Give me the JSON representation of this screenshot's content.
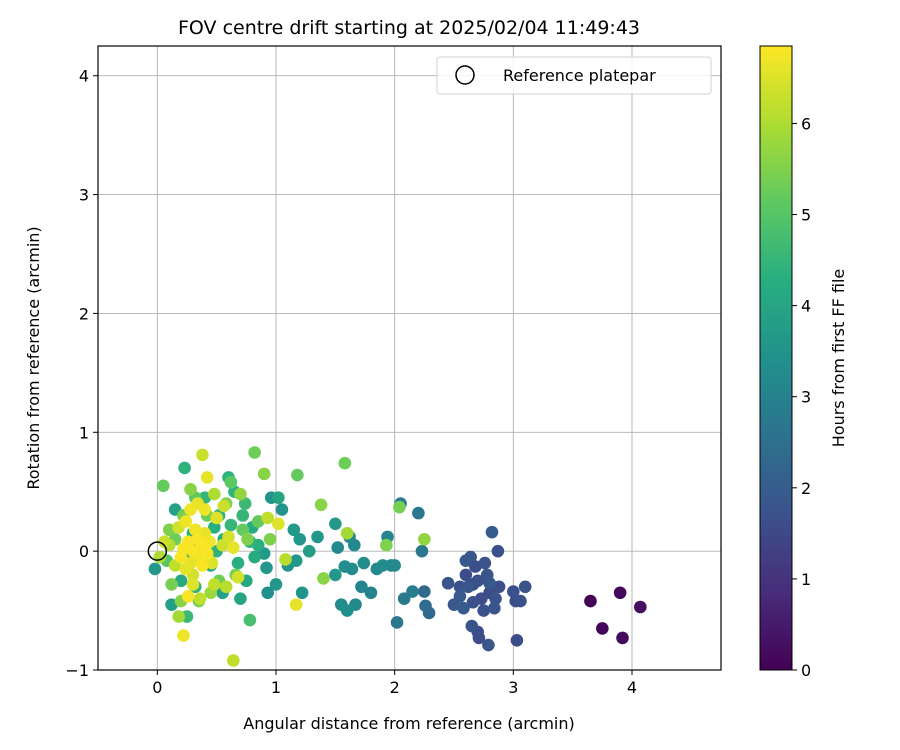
{
  "chart_data": {
    "type": "scatter",
    "title": "FOV centre drift starting at 2025/02/04 11:49:43",
    "xlabel": "Angular distance from reference (arcmin)",
    "ylabel": "Rotation from reference (arcmin)",
    "xlim": [
      -0.5,
      4.75
    ],
    "ylim": [
      -1,
      4.25
    ],
    "xticks": [
      "0",
      "1",
      "2",
      "3",
      "4"
    ],
    "yticks": [
      "−1",
      "0",
      "1",
      "2",
      "3",
      "4"
    ],
    "grid": true,
    "legend": {
      "placement": "upper-right",
      "entries": [
        "Reference platepar"
      ]
    },
    "reference_point": {
      "x": 0,
      "y": 0
    },
    "colorbar": {
      "label": "Hours from first FF file",
      "range": [
        0,
        6.85
      ],
      "ticks": [
        "0",
        "1",
        "2",
        "3",
        "4",
        "5",
        "6"
      ],
      "colormap": "viridis"
    },
    "points": [
      {
        "x": 3.65,
        "y": -0.42,
        "c": 0.05
      },
      {
        "x": 3.75,
        "y": -0.65,
        "c": 0.1
      },
      {
        "x": 3.9,
        "y": -0.35,
        "c": 0.15
      },
      {
        "x": 3.92,
        "y": -0.73,
        "c": 0.2
      },
      {
        "x": 4.07,
        "y": -0.47,
        "c": 0.25
      },
      {
        "x": 2.45,
        "y": -0.27,
        "c": 1.8
      },
      {
        "x": 2.5,
        "y": -0.45,
        "c": 1.85
      },
      {
        "x": 2.55,
        "y": -0.38,
        "c": 1.9
      },
      {
        "x": 2.58,
        "y": -0.48,
        "c": 1.95
      },
      {
        "x": 2.6,
        "y": -0.08,
        "c": 1.9
      },
      {
        "x": 2.62,
        "y": -0.3,
        "c": 1.85
      },
      {
        "x": 2.64,
        "y": -0.05,
        "c": 1.8
      },
      {
        "x": 2.65,
        "y": -0.63,
        "c": 1.75
      },
      {
        "x": 2.66,
        "y": -0.43,
        "c": 1.7
      },
      {
        "x": 2.68,
        "y": -0.13,
        "c": 1.65
      },
      {
        "x": 2.7,
        "y": -0.68,
        "c": 1.6
      },
      {
        "x": 2.71,
        "y": -0.73,
        "c": 1.6
      },
      {
        "x": 2.73,
        "y": -0.4,
        "c": 1.65
      },
      {
        "x": 2.75,
        "y": -0.5,
        "c": 1.7
      },
      {
        "x": 2.76,
        "y": -0.1,
        "c": 1.75
      },
      {
        "x": 2.78,
        "y": -0.2,
        "c": 1.8
      },
      {
        "x": 2.79,
        "y": -0.79,
        "c": 1.85
      },
      {
        "x": 2.8,
        "y": -0.27,
        "c": 1.9
      },
      {
        "x": 2.82,
        "y": 0.16,
        "c": 1.95
      },
      {
        "x": 2.84,
        "y": -0.48,
        "c": 1.8
      },
      {
        "x": 2.85,
        "y": -0.4,
        "c": 1.75
      },
      {
        "x": 2.87,
        "y": 0.0,
        "c": 1.7
      },
      {
        "x": 2.88,
        "y": -0.3,
        "c": 1.65
      },
      {
        "x": 2.6,
        "y": -0.2,
        "c": 1.6
      },
      {
        "x": 2.66,
        "y": -0.28,
        "c": 1.55
      },
      {
        "x": 3.0,
        "y": -0.34,
        "c": 1.7
      },
      {
        "x": 3.02,
        "y": -0.42,
        "c": 1.65
      },
      {
        "x": 3.03,
        "y": -0.75,
        "c": 1.6
      },
      {
        "x": 3.06,
        "y": -0.42,
        "c": 1.7
      },
      {
        "x": 3.1,
        "y": -0.3,
        "c": 1.75
      },
      {
        "x": 2.8,
        "y": -0.35,
        "c": 1.6
      },
      {
        "x": 2.7,
        "y": -0.25,
        "c": 1.7
      },
      {
        "x": 2.55,
        "y": -0.3,
        "c": 1.7
      },
      {
        "x": 2.05,
        "y": 0.4,
        "c": 2.9
      },
      {
        "x": 2.08,
        "y": -0.4,
        "c": 2.8
      },
      {
        "x": 2.15,
        "y": -0.34,
        "c": 2.9
      },
      {
        "x": 2.2,
        "y": 0.32,
        "c": 2.7
      },
      {
        "x": 2.23,
        "y": 0.0,
        "c": 2.7
      },
      {
        "x": 2.25,
        "y": -0.34,
        "c": 2.3
      },
      {
        "x": 2.26,
        "y": -0.46,
        "c": 2.4
      },
      {
        "x": 2.29,
        "y": -0.52,
        "c": 2.3
      },
      {
        "x": 2.02,
        "y": -0.6,
        "c": 2.7
      },
      {
        "x": 1.5,
        "y": 0.23,
        "c": 3.7
      },
      {
        "x": 1.52,
        "y": 0.03,
        "c": 3.2
      },
      {
        "x": 1.55,
        "y": -0.45,
        "c": 3.3
      },
      {
        "x": 1.58,
        "y": -0.13,
        "c": 3.3
      },
      {
        "x": 1.6,
        "y": -0.5,
        "c": 3.4
      },
      {
        "x": 1.62,
        "y": 0.12,
        "c": 3.2
      },
      {
        "x": 1.64,
        "y": -0.15,
        "c": 3.3
      },
      {
        "x": 1.66,
        "y": 0.05,
        "c": 3.2
      },
      {
        "x": 1.67,
        "y": -0.45,
        "c": 3.2
      },
      {
        "x": 1.72,
        "y": -0.3,
        "c": 3.1
      },
      {
        "x": 1.74,
        "y": -0.1,
        "c": 3.3
      },
      {
        "x": 1.8,
        "y": -0.35,
        "c": 3.0
      },
      {
        "x": 1.85,
        "y": -0.15,
        "c": 3.2
      },
      {
        "x": 1.9,
        "y": -0.12,
        "c": 3.3
      },
      {
        "x": 1.94,
        "y": 0.12,
        "c": 3.1
      },
      {
        "x": 1.97,
        "y": -0.12,
        "c": 3.1
      },
      {
        "x": 2.0,
        "y": -0.12,
        "c": 3.2
      },
      {
        "x": 1.5,
        "y": -0.2,
        "c": 3.6
      },
      {
        "x": 1.2,
        "y": 0.1,
        "c": 3.6
      },
      {
        "x": 1.22,
        "y": -0.35,
        "c": 3.5
      },
      {
        "x": 1.28,
        "y": 0.0,
        "c": 3.8
      },
      {
        "x": 1.35,
        "y": 0.12,
        "c": 3.6
      },
      {
        "x": 1.15,
        "y": 0.18,
        "c": 3.7
      },
      {
        "x": 1.1,
        "y": -0.12,
        "c": 3.5
      },
      {
        "x": 1.05,
        "y": 0.35,
        "c": 3.5
      },
      {
        "x": 1.0,
        "y": -0.28,
        "c": 3.6
      },
      {
        "x": 0.93,
        "y": -0.35,
        "c": 3.4
      },
      {
        "x": 0.92,
        "y": -0.14,
        "c": 3.6
      },
      {
        "x": 0.96,
        "y": 0.45,
        "c": 3.5
      },
      {
        "x": 0.9,
        "y": -0.02,
        "c": 3.7
      },
      {
        "x": 1.02,
        "y": 0.45,
        "c": 4.0
      },
      {
        "x": 1.17,
        "y": -0.08,
        "c": 3.6
      },
      {
        "x": 0.6,
        "y": 0.62,
        "c": 4.4
      },
      {
        "x": 0.55,
        "y": -0.35,
        "c": 3.9
      },
      {
        "x": 0.7,
        "y": -0.4,
        "c": 4.0
      },
      {
        "x": 0.75,
        "y": -0.25,
        "c": 4.1
      },
      {
        "x": 0.8,
        "y": 0.2,
        "c": 4.2
      },
      {
        "x": 0.85,
        "y": 0.05,
        "c": 4.3
      },
      {
        "x": 0.65,
        "y": 0.5,
        "c": 4.4
      },
      {
        "x": 0.72,
        "y": 0.3,
        "c": 4.5
      },
      {
        "x": 0.68,
        "y": -0.1,
        "c": 4.3
      },
      {
        "x": 0.78,
        "y": 0.08,
        "c": 4.4
      },
      {
        "x": 0.56,
        "y": 0.1,
        "c": 4.2
      },
      {
        "x": 0.62,
        "y": 0.22,
        "c": 4.5
      },
      {
        "x": 0.74,
        "y": 0.4,
        "c": 4.6
      },
      {
        "x": 0.82,
        "y": -0.05,
        "c": 4.2
      },
      {
        "x": 0.52,
        "y": 0.3,
        "c": 4.4
      },
      {
        "x": -0.02,
        "y": -0.15,
        "c": 3.6
      },
      {
        "x": 0.12,
        "y": -0.45,
        "c": 3.8
      },
      {
        "x": 0.15,
        "y": 0.35,
        "c": 3.9
      },
      {
        "x": 0.2,
        "y": -0.25,
        "c": 4.1
      },
      {
        "x": 0.23,
        "y": 0.7,
        "c": 4.4
      },
      {
        "x": 0.25,
        "y": -0.55,
        "c": 4.6
      },
      {
        "x": 0.28,
        "y": -0.05,
        "c": 4.0
      },
      {
        "x": 0.3,
        "y": 0.15,
        "c": 4.2
      },
      {
        "x": 0.32,
        "y": -0.3,
        "c": 4.5
      },
      {
        "x": 0.35,
        "y": 0.05,
        "c": 4.3
      },
      {
        "x": 0.4,
        "y": 0.45,
        "c": 4.5
      },
      {
        "x": 0.45,
        "y": -0.12,
        "c": 4.1
      },
      {
        "x": 0.48,
        "y": 0.2,
        "c": 4.3
      },
      {
        "x": 0.5,
        "y": 0.0,
        "c": 4.4
      },
      {
        "x": 0.38,
        "y": -0.05,
        "c": 3.9
      },
      {
        "x": 0.78,
        "y": -0.58,
        "c": 4.8
      },
      {
        "x": 1.18,
        "y": 0.64,
        "c": 5.2
      },
      {
        "x": 1.38,
        "y": 0.39,
        "c": 5.6
      },
      {
        "x": 1.4,
        "y": -0.23,
        "c": 5.6
      },
      {
        "x": 1.58,
        "y": 0.74,
        "c": 5.3
      },
      {
        "x": 1.6,
        "y": 0.15,
        "c": 5.9
      },
      {
        "x": 1.93,
        "y": 0.05,
        "c": 5.5
      },
      {
        "x": 2.04,
        "y": 0.37,
        "c": 5.4
      },
      {
        "x": 2.25,
        "y": 0.1,
        "c": 5.7
      },
      {
        "x": 0.82,
        "y": 0.83,
        "c": 5.3
      },
      {
        "x": 0.9,
        "y": 0.65,
        "c": 5.6
      },
      {
        "x": 0.62,
        "y": 0.58,
        "c": 5.1
      },
      {
        "x": 0.7,
        "y": 0.48,
        "c": 5.7
      },
      {
        "x": 0.85,
        "y": 0.25,
        "c": 5.2
      },
      {
        "x": 0.95,
        "y": 0.1,
        "c": 5.5
      },
      {
        "x": 0.52,
        "y": -0.25,
        "c": 5.3
      },
      {
        "x": 0.45,
        "y": -0.35,
        "c": 5.8
      },
      {
        "x": 0.35,
        "y": -0.42,
        "c": 5.4
      },
      {
        "x": 0.2,
        "y": -0.42,
        "c": 5.6
      },
      {
        "x": 0.18,
        "y": -0.55,
        "c": 5.9
      },
      {
        "x": 0.05,
        "y": 0.55,
        "c": 5.2
      },
      {
        "x": 0.1,
        "y": 0.18,
        "c": 5.5
      },
      {
        "x": 0.15,
        "y": 0.1,
        "c": 5.3
      },
      {
        "x": 0.22,
        "y": 0.3,
        "c": 5.4
      },
      {
        "x": 0.28,
        "y": 0.52,
        "c": 5.6
      },
      {
        "x": 0.32,
        "y": 0.45,
        "c": 5.1
      },
      {
        "x": 0.42,
        "y": 0.3,
        "c": 5.3
      },
      {
        "x": 0.58,
        "y": 0.4,
        "c": 5.5
      },
      {
        "x": 0.66,
        "y": -0.2,
        "c": 5.4
      },
      {
        "x": 0.72,
        "y": 0.18,
        "c": 5.2
      },
      {
        "x": 0.76,
        "y": 0.1,
        "c": 5.5
      },
      {
        "x": 0.12,
        "y": -0.28,
        "c": 5.4
      },
      {
        "x": 0.08,
        "y": -0.08,
        "c": 5.0
      },
      {
        "x": 0.38,
        "y": 0.81,
        "c": 6.3
      },
      {
        "x": 0.22,
        "y": -0.71,
        "c": 6.7
      },
      {
        "x": 0.64,
        "y": -0.92,
        "c": 6.2
      },
      {
        "x": 1.17,
        "y": -0.45,
        "c": 6.6
      },
      {
        "x": 1.08,
        "y": -0.07,
        "c": 6.1
      },
      {
        "x": 1.02,
        "y": 0.23,
        "c": 6.5
      },
      {
        "x": 0.93,
        "y": 0.28,
        "c": 6.2
      },
      {
        "x": 0.68,
        "y": -0.22,
        "c": 6.4
      },
      {
        "x": 0.58,
        "y": -0.3,
        "c": 6.1
      },
      {
        "x": 0.56,
        "y": 0.38,
        "c": 6.3
      },
      {
        "x": 0.48,
        "y": 0.48,
        "c": 6.0
      },
      {
        "x": 0.42,
        "y": 0.62,
        "c": 6.6
      },
      {
        "x": 0.36,
        "y": -0.4,
        "c": 6.2
      },
      {
        "x": 0.3,
        "y": -0.28,
        "c": 6.5
      },
      {
        "x": 0.26,
        "y": -0.38,
        "c": 6.8
      },
      {
        "x": 0.24,
        "y": 0.25,
        "c": 6.7
      },
      {
        "x": 0.26,
        "y": 0.08,
        "c": 6.8
      },
      {
        "x": 0.28,
        "y": -0.1,
        "c": 6.6
      },
      {
        "x": 0.3,
        "y": 0.0,
        "c": 6.8
      },
      {
        "x": 0.32,
        "y": 0.18,
        "c": 6.7
      },
      {
        "x": 0.34,
        "y": 0.1,
        "c": 6.8
      },
      {
        "x": 0.36,
        "y": -0.05,
        "c": 6.7
      },
      {
        "x": 0.38,
        "y": 0.05,
        "c": 6.8
      },
      {
        "x": 0.4,
        "y": 0.15,
        "c": 6.6
      },
      {
        "x": 0.42,
        "y": -0.02,
        "c": 6.8
      },
      {
        "x": 0.44,
        "y": 0.08,
        "c": 6.7
      },
      {
        "x": 0.46,
        "y": -0.1,
        "c": 6.5
      },
      {
        "x": 0.22,
        "y": 0.02,
        "c": 6.8
      },
      {
        "x": 0.24,
        "y": -0.15,
        "c": 6.6
      },
      {
        "x": 0.28,
        "y": 0.35,
        "c": 6.7
      },
      {
        "x": 0.34,
        "y": 0.4,
        "c": 6.6
      },
      {
        "x": 0.4,
        "y": 0.35,
        "c": 6.7
      },
      {
        "x": 0.5,
        "y": 0.28,
        "c": 6.5
      },
      {
        "x": 0.55,
        "y": 0.05,
        "c": 6.3
      },
      {
        "x": 0.6,
        "y": 0.12,
        "c": 6.4
      },
      {
        "x": 0.64,
        "y": 0.03,
        "c": 6.6
      },
      {
        "x": 0.18,
        "y": 0.2,
        "c": 6.4
      },
      {
        "x": 0.15,
        "y": -0.12,
        "c": 6.2
      },
      {
        "x": 0.1,
        "y": 0.05,
        "c": 6.1
      },
      {
        "x": 0.06,
        "y": 0.08,
        "c": 6.3
      },
      {
        "x": 0.02,
        "y": -0.05,
        "c": 6.0
      },
      {
        "x": 0.2,
        "y": -0.05,
        "c": 6.8
      },
      {
        "x": 0.3,
        "y": -0.2,
        "c": 6.4
      },
      {
        "x": 0.48,
        "y": -0.28,
        "c": 6.2
      },
      {
        "x": 0.38,
        "y": -0.12,
        "c": 6.8
      }
    ]
  }
}
